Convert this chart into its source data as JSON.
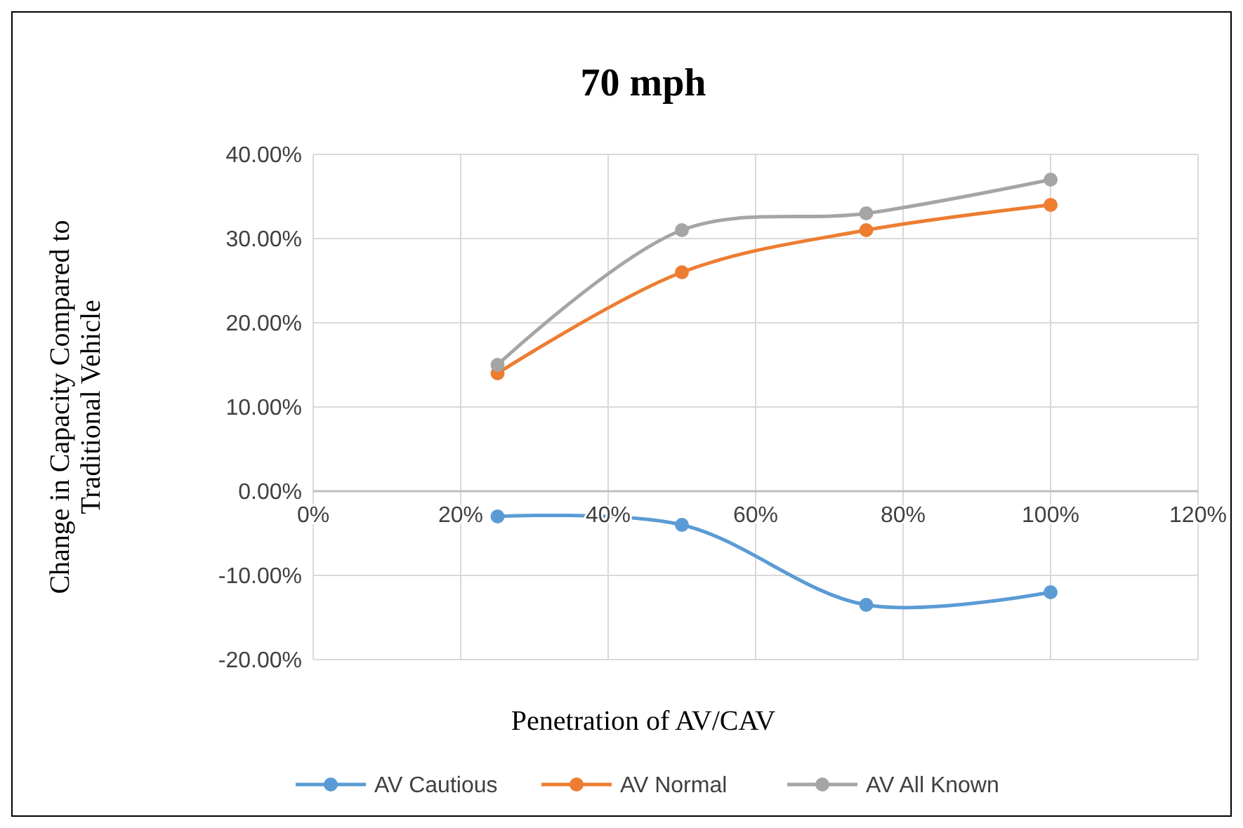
{
  "chart_data": {
    "type": "line",
    "title": "70 mph",
    "xlabel": "Penetration of AV/CAV",
    "ylabel": "Change in Capacity Compared to\nTraditional Vehicle",
    "x": [
      25,
      50,
      75,
      100
    ],
    "series": [
      {
        "name": "AV Cautious",
        "color": "#5b9bd5",
        "values": [
          -3,
          -4,
          -13.5,
          -12
        ]
      },
      {
        "name": "AV Normal",
        "color": "#ed7d31",
        "values": [
          14,
          26,
          31,
          34
        ]
      },
      {
        "name": "AV All Known",
        "color": "#a5a5a5",
        "values": [
          15,
          31,
          33,
          37
        ]
      }
    ],
    "xlim": [
      0,
      120
    ],
    "xticks": [
      {
        "value": 0,
        "label": "0%"
      },
      {
        "value": 20,
        "label": "20%"
      },
      {
        "value": 40,
        "label": "40%"
      },
      {
        "value": 60,
        "label": "60%"
      },
      {
        "value": 80,
        "label": "80%"
      },
      {
        "value": 100,
        "label": "100%"
      },
      {
        "value": 120,
        "label": "120%"
      }
    ],
    "ylim": [
      -20,
      40
    ],
    "yticks": [
      {
        "value": -20,
        "label": "-20.00%"
      },
      {
        "value": -10,
        "label": "-10.00%"
      },
      {
        "value": 0,
        "label": "0.00%"
      },
      {
        "value": 10,
        "label": "10.00%"
      },
      {
        "value": 20,
        "label": "20.00%"
      },
      {
        "value": 30,
        "label": "30.00%"
      },
      {
        "value": 40,
        "label": "40.00%"
      }
    ],
    "grid": true,
    "legend": "bottom",
    "marker": "circle",
    "line_style": "solid"
  }
}
